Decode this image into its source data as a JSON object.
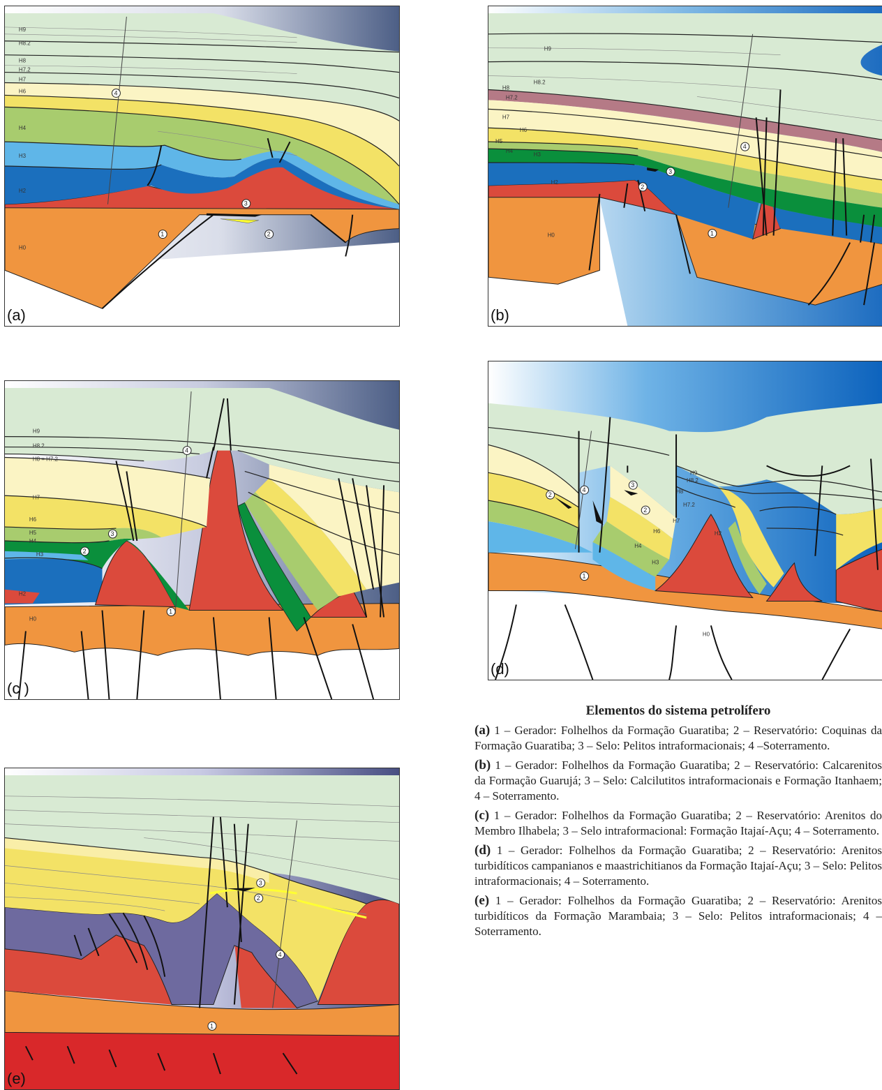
{
  "panels": [
    {
      "id": "a",
      "letter": "(a)",
      "horizons": [
        "H9",
        "H8.2",
        "H8",
        "H7.2",
        "H7",
        "H6",
        "H4",
        "H3",
        "H2",
        "H0"
      ],
      "callouts": [
        "1",
        "2",
        "3",
        "4"
      ]
    },
    {
      "id": "b",
      "letter": "(b)",
      "horizons": [
        "H9",
        "H8.2",
        "H8",
        "H7.2",
        "H7",
        "H6",
        "H5",
        "H4",
        "H3",
        "H2",
        "H0"
      ],
      "callouts": [
        "1",
        "2",
        "3",
        "4"
      ]
    },
    {
      "id": "c",
      "letter": "(c )",
      "horizons": [
        "H9",
        "H8.2",
        "H8 = H7.2",
        "H7",
        "H6",
        "H5",
        "H4",
        "H3",
        "H2",
        "H0"
      ],
      "callouts": [
        "1",
        "2",
        "3",
        "4"
      ]
    },
    {
      "id": "d",
      "letter": "(d)",
      "horizons": [
        "H9",
        "H8.2",
        "H8",
        "H7.2",
        "H7",
        "H6",
        "H4",
        "H3",
        "H2",
        "H0"
      ],
      "callouts": [
        "1",
        "2",
        "2",
        "3",
        "4"
      ]
    },
    {
      "id": "e",
      "letter": "(e)",
      "horizons": [],
      "callouts": [
        "1",
        "2",
        "3",
        "4"
      ]
    }
  ],
  "legend": {
    "title": "Elementos do sistema petrolífero",
    "items": [
      {
        "label": "(a)",
        "text": "1 – Gerador: Folhelhos da Formação Guaratiba; 2 – Reservatório: Coquinas da Formação Guaratiba; 3 – Selo: Pelitos intraformacionais; 4 –Soterramento."
      },
      {
        "label": "(b)",
        "text": "1 – Gerador: Folhelhos da Formação Guaratiba; 2 – Reservatório: Calcarenitos da Formação Guarujá; 3 – Selo: Calcilutitos intraformacionais e Formação Itanhaem; 4 – Soterramento."
      },
      {
        "label": "(c)",
        "text": "1 – Gerador: Folhelhos da Formação Guaratiba; 2 – Reservatório: Arenitos do Membro Ilhabela; 3 – Selo intraformacional: Formação Itajaí-Açu; 4 – Soterramento."
      },
      {
        "label": "(d)",
        "text": "1 – Gerador: Folhelhos da Formação Guaratiba; 2 – Reservatório: Arenitos turbidíticos campanianos e maastrichitianos da Formação Itajaí-Açu; 3 – Selo: Pelitos intraformacionais; 4 – Soterramento."
      },
      {
        "label": "(e)",
        "text": "1 – Gerador: Folhelhos da Formação Guaratiba; 2 – Reservatório: Arenitos turbidíticos da Formação Marambaia; 3 – Selo: Pelitos intraformacionais; 4 – Soterramento."
      }
    ]
  }
}
